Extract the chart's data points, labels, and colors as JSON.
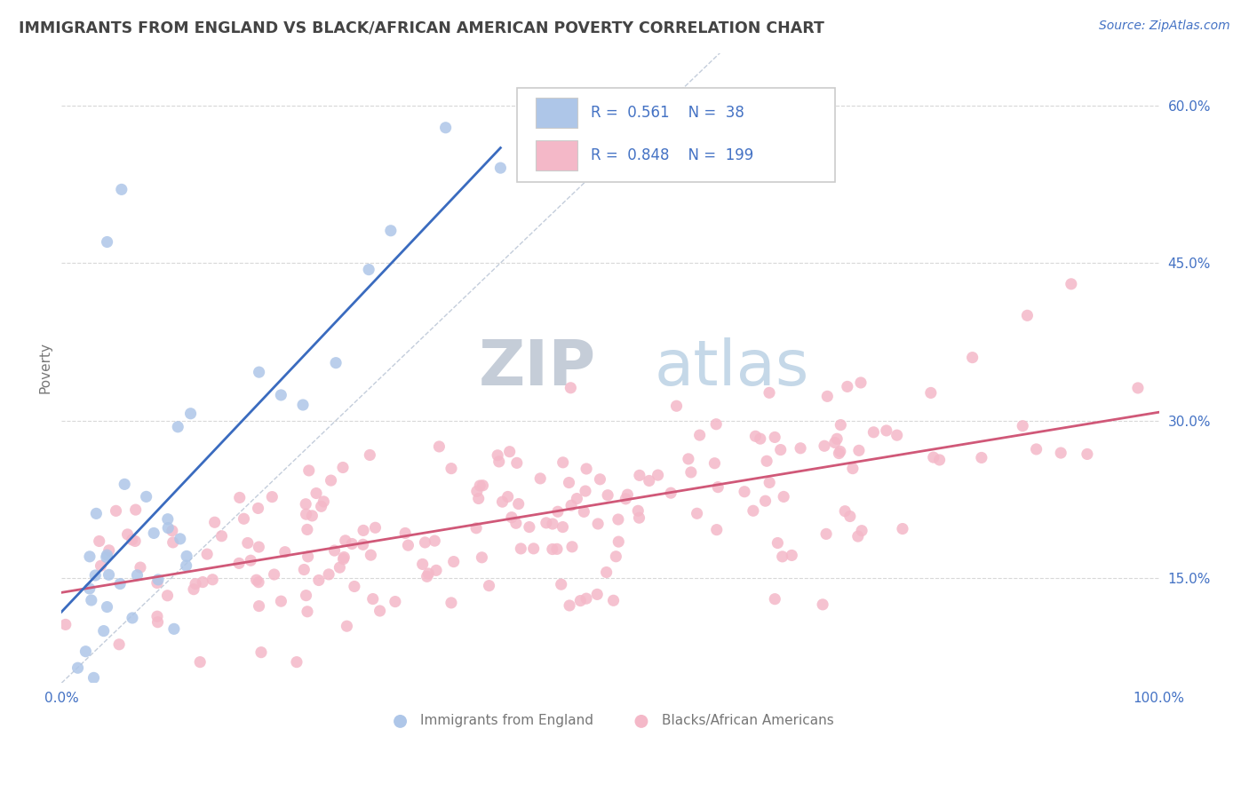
{
  "title": "IMMIGRANTS FROM ENGLAND VS BLACK/AFRICAN AMERICAN POVERTY CORRELATION CHART",
  "source_text": "Source: ZipAtlas.com",
  "ylabel": "Poverty",
  "xlim": [
    0,
    1.0
  ],
  "ylim": [
    0.05,
    0.65
  ],
  "yticks": [
    0.15,
    0.3,
    0.45,
    0.6
  ],
  "ytick_labels": [
    "15.0%",
    "30.0%",
    "45.0%",
    "60.0%"
  ],
  "blue_R": 0.561,
  "blue_N": 38,
  "pink_R": 0.848,
  "pink_N": 199,
  "blue_dot_color": "#aec6e8",
  "blue_line_color": "#3a6bbf",
  "pink_dot_color": "#f4b8c8",
  "pink_line_color": "#d05878",
  "diag_color": "#aab8cc",
  "watermark_zip_color": "#c5cdd8",
  "watermark_atlas_color": "#c5d8e8",
  "title_color": "#444444",
  "axis_color": "#4472c4",
  "tick_color": "#888888",
  "background_color": "#ffffff",
  "grid_color": "#d8d8d8",
  "legend_border_color": "#cccccc",
  "blue_seed": 42,
  "pink_seed": 7
}
